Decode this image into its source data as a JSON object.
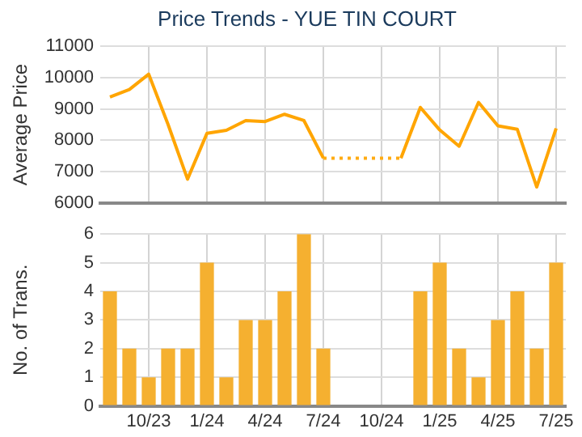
{
  "chart_data": [
    {
      "type": "line",
      "title": "Price Trends - YUE TIN COURT",
      "ylabel": "Average Price",
      "categories": [
        null,
        null,
        null,
        null,
        null,
        null,
        null,
        null,
        null,
        null,
        null,
        null,
        null,
        null,
        null,
        null,
        null,
        null,
        null,
        null,
        null,
        null,
        null,
        null
      ],
      "series": [
        {
          "color": "#ffa500",
          "line_style": "solid",
          "values": [
            9380,
            9620,
            10110,
            8500,
            6760,
            8220,
            8320,
            8630,
            8600,
            8830,
            8630,
            7430,
            null,
            null,
            null,
            7430,
            9050,
            8330,
            7810,
            9210,
            8460,
            8350,
            6510,
            8380
          ]
        },
        {
          "color": "#ffac14",
          "line_style": "dotted",
          "values": [
            null,
            null,
            null,
            null,
            null,
            null,
            null,
            null,
            null,
            null,
            null,
            7430,
            7430,
            7430,
            7430,
            7430,
            null,
            null,
            null,
            null,
            null,
            null,
            null,
            null
          ]
        }
      ],
      "ylim": [
        6000,
        11000
      ],
      "yticks": [
        6000,
        7000,
        8000,
        9000,
        10000,
        11000
      ],
      "grid": true,
      "legend": false,
      "marker": "none",
      "tick_labels": "y"
    },
    {
      "type": "bar",
      "ylabel": "No. of Trans.",
      "categories": [
        null,
        null,
        "10/23",
        null,
        null,
        "1/24",
        null,
        null,
        "4/24",
        null,
        null,
        "7/24",
        null,
        null,
        "10/24",
        null,
        null,
        "1/25",
        null,
        null,
        "4/25",
        null,
        null,
        "7/25"
      ],
      "values": [
        4,
        2,
        1,
        2,
        2,
        5,
        1,
        3,
        3,
        4,
        6,
        2,
        0,
        0,
        0,
        0,
        4,
        5,
        2,
        1,
        3,
        4,
        2,
        5
      ],
      "color": "#f5b030",
      "ylim": [
        0,
        6
      ],
      "yticks": [
        0,
        1,
        2,
        3,
        4,
        5,
        6
      ],
      "grid": true,
      "legend": false
    }
  ]
}
